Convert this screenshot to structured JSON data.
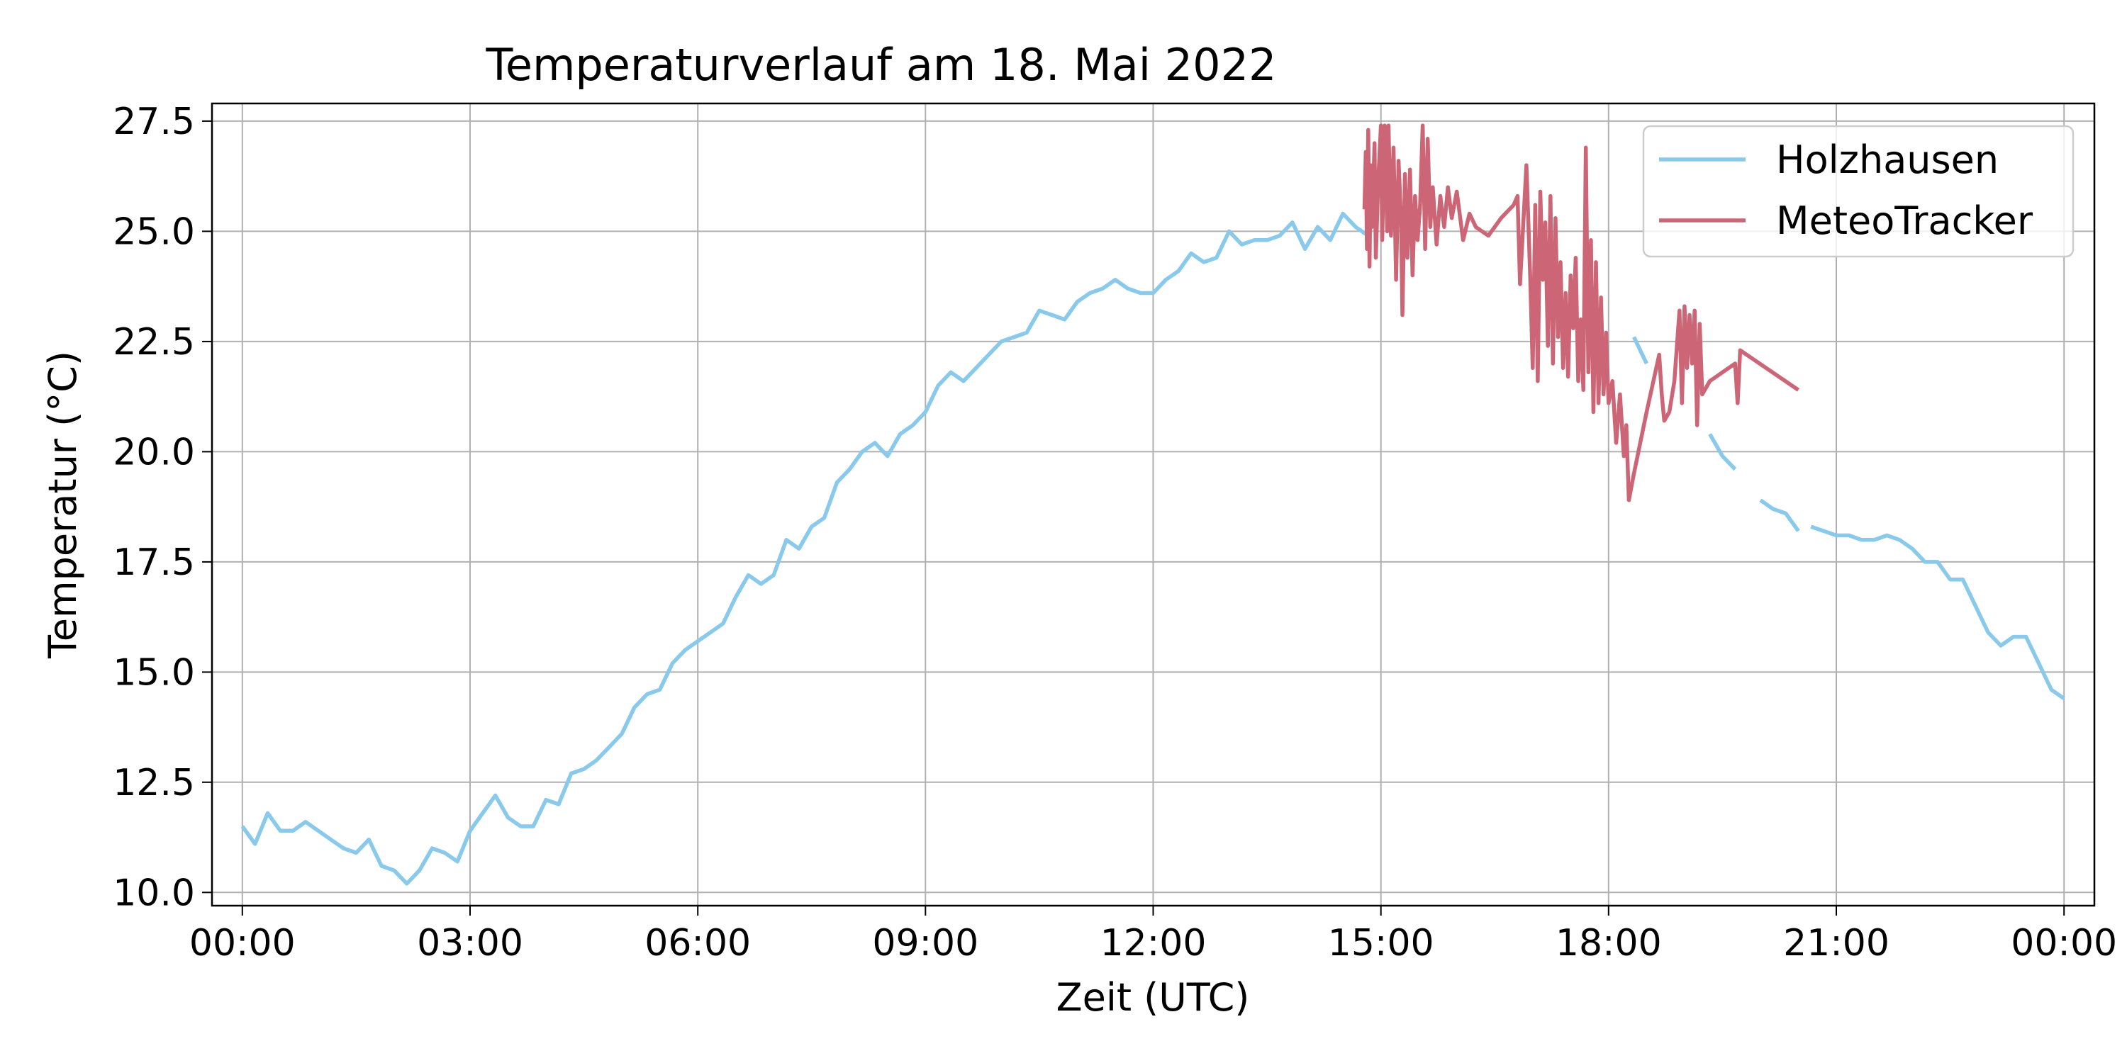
{
  "chart_data": {
    "type": "line",
    "title": "Temperaturverlauf am 18. Mai 2022",
    "xlabel": "Zeit (UTC)",
    "ylabel": "Temperatur (°C)",
    "xlim": [
      "2022-05-17T23:36",
      "2022-05-19T00:24"
    ],
    "ylim": [
      9.7,
      27.9
    ],
    "grid": true,
    "legend_position": "top-right",
    "x_ticks": [
      "2022-05-18T00:00",
      "2022-05-18T03:00",
      "2022-05-18T06:00",
      "2022-05-18T09:00",
      "2022-05-18T12:00",
      "2022-05-18T15:00",
      "2022-05-18T18:00",
      "2022-05-18T21:00",
      "2022-05-19T00:00"
    ],
    "x_tick_labels": [
      "00:00",
      "03:00",
      "06:00",
      "09:00",
      "12:00",
      "15:00",
      "18:00",
      "21:00",
      "00:00"
    ],
    "y_ticks": [
      10,
      12.5,
      15,
      17.5,
      20,
      22.5,
      25,
      27.5
    ],
    "y_tick_labels": [
      "10.0",
      "12.5",
      "15.0",
      "17.5",
      "20.0",
      "22.5",
      "25.0",
      "27.5"
    ],
    "series": [
      {
        "name": "Holzhausen",
        "color": "#88c9ec",
        "points": [
          [
            "2022-05-18T00:00",
            11.5
          ],
          [
            "2022-05-18T00:10",
            11.1
          ],
          [
            "2022-05-18T00:20",
            11.8
          ],
          [
            "2022-05-18T00:30",
            11.4
          ],
          [
            "2022-05-18T00:40",
            11.4
          ],
          [
            "2022-05-18T00:50",
            11.6
          ],
          [
            "2022-05-18T01:00",
            11.4
          ],
          [
            "2022-05-18T01:10",
            11.2
          ],
          [
            "2022-05-18T01:20",
            11.0
          ],
          [
            "2022-05-18T01:30",
            10.9
          ],
          [
            "2022-05-18T01:40",
            11.2
          ],
          [
            "2022-05-18T01:50",
            10.6
          ],
          [
            "2022-05-18T02:00",
            10.5
          ],
          [
            "2022-05-18T02:10",
            10.2
          ],
          [
            "2022-05-18T02:20",
            10.5
          ],
          [
            "2022-05-18T02:30",
            11.0
          ],
          [
            "2022-05-18T02:40",
            10.9
          ],
          [
            "2022-05-18T02:50",
            10.7
          ],
          [
            "2022-05-18T03:00",
            11.4
          ],
          [
            "2022-05-18T03:10",
            11.8
          ],
          [
            "2022-05-18T03:20",
            12.2
          ],
          [
            "2022-05-18T03:30",
            11.7
          ],
          [
            "2022-05-18T03:40",
            11.5
          ],
          [
            "2022-05-18T03:50",
            11.5
          ],
          [
            "2022-05-18T04:00",
            12.1
          ],
          [
            "2022-05-18T04:10",
            12.0
          ],
          [
            "2022-05-18T04:20",
            12.7
          ],
          [
            "2022-05-18T04:30",
            12.8
          ],
          [
            "2022-05-18T04:40",
            13.0
          ],
          [
            "2022-05-18T04:50",
            13.3
          ],
          [
            "2022-05-18T05:00",
            13.6
          ],
          [
            "2022-05-18T05:10",
            14.2
          ],
          [
            "2022-05-18T05:20",
            14.5
          ],
          [
            "2022-05-18T05:30",
            14.6
          ],
          [
            "2022-05-18T05:40",
            15.2
          ],
          [
            "2022-05-18T05:50",
            15.5
          ],
          [
            "2022-05-18T06:00",
            15.7
          ],
          [
            "2022-05-18T06:10",
            15.9
          ],
          [
            "2022-05-18T06:20",
            16.1
          ],
          [
            "2022-05-18T06:30",
            16.7
          ],
          [
            "2022-05-18T06:40",
            17.2
          ],
          [
            "2022-05-18T06:50",
            17.0
          ],
          [
            "2022-05-18T07:00",
            17.2
          ],
          [
            "2022-05-18T07:10",
            18.0
          ],
          [
            "2022-05-18T07:20",
            17.8
          ],
          [
            "2022-05-18T07:30",
            18.3
          ],
          [
            "2022-05-18T07:40",
            18.5
          ],
          [
            "2022-05-18T07:50",
            19.3
          ],
          [
            "2022-05-18T08:00",
            19.6
          ],
          [
            "2022-05-18T08:10",
            20.0
          ],
          [
            "2022-05-18T08:20",
            20.2
          ],
          [
            "2022-05-18T08:30",
            19.9
          ],
          [
            "2022-05-18T08:40",
            20.4
          ],
          [
            "2022-05-18T08:50",
            20.6
          ],
          [
            "2022-05-18T09:00",
            20.9
          ],
          [
            "2022-05-18T09:10",
            21.5
          ],
          [
            "2022-05-18T09:20",
            21.8
          ],
          [
            "2022-05-18T09:30",
            21.6
          ],
          [
            "2022-05-18T09:40",
            21.9
          ],
          [
            "2022-05-18T09:50",
            22.2
          ],
          [
            "2022-05-18T10:00",
            22.5
          ],
          [
            "2022-05-18T10:10",
            22.6
          ],
          [
            "2022-05-18T10:20",
            22.7
          ],
          [
            "2022-05-18T10:30",
            23.2
          ],
          [
            "2022-05-18T10:40",
            23.1
          ],
          [
            "2022-05-18T10:50",
            23.0
          ],
          [
            "2022-05-18T11:00",
            23.4
          ],
          [
            "2022-05-18T11:10",
            23.6
          ],
          [
            "2022-05-18T11:20",
            23.7
          ],
          [
            "2022-05-18T11:30",
            23.9
          ],
          [
            "2022-05-18T11:40",
            23.7
          ],
          [
            "2022-05-18T11:50",
            23.6
          ],
          [
            "2022-05-18T12:00",
            23.6
          ],
          [
            "2022-05-18T12:10",
            23.9
          ],
          [
            "2022-05-18T12:20",
            24.1
          ],
          [
            "2022-05-18T12:30",
            24.5
          ],
          [
            "2022-05-18T12:40",
            24.3
          ],
          [
            "2022-05-18T12:50",
            24.4
          ],
          [
            "2022-05-18T13:00",
            25.0
          ],
          [
            "2022-05-18T13:10",
            24.7
          ],
          [
            "2022-05-18T13:20",
            24.8
          ],
          [
            "2022-05-18T13:30",
            24.8
          ],
          [
            "2022-05-18T13:40",
            24.9
          ],
          [
            "2022-05-18T13:50",
            25.2
          ],
          [
            "2022-05-18T14:00",
            24.6
          ],
          [
            "2022-05-18T14:10",
            25.1
          ],
          [
            "2022-05-18T14:20",
            24.8
          ],
          [
            "2022-05-18T14:30",
            25.4
          ],
          [
            "2022-05-18T14:40",
            25.1
          ],
          [
            "2022-05-18T14:50",
            24.9
          ],
          null,
          [
            "2022-05-18T18:20",
            22.6
          ],
          [
            "2022-05-18T18:30",
            22.0
          ],
          null,
          [
            "2022-05-18T19:00",
            20.7
          ],
          null,
          [
            "2022-05-18T19:20",
            20.4
          ],
          [
            "2022-05-18T19:30",
            19.9
          ],
          [
            "2022-05-18T19:40",
            19.6
          ],
          null,
          [
            "2022-05-18T20:00",
            18.9
          ],
          [
            "2022-05-18T20:10",
            18.7
          ],
          [
            "2022-05-18T20:20",
            18.6
          ],
          [
            "2022-05-18T20:30",
            18.2
          ],
          null,
          [
            "2022-05-18T20:40",
            18.3
          ],
          [
            "2022-05-18T20:50",
            18.2
          ],
          [
            "2022-05-18T21:00",
            18.1
          ],
          [
            "2022-05-18T21:10",
            18.1
          ],
          [
            "2022-05-18T21:20",
            18.0
          ],
          [
            "2022-05-18T21:30",
            18.0
          ],
          [
            "2022-05-18T21:40",
            18.1
          ],
          [
            "2022-05-18T21:50",
            18.0
          ],
          [
            "2022-05-18T22:00",
            17.8
          ],
          [
            "2022-05-18T22:10",
            17.5
          ],
          [
            "2022-05-18T22:20",
            17.5
          ],
          [
            "2022-05-18T22:30",
            17.1
          ],
          [
            "2022-05-18T22:40",
            17.1
          ],
          [
            "2022-05-18T22:50",
            16.5
          ],
          [
            "2022-05-18T23:00",
            15.9
          ],
          [
            "2022-05-18T23:10",
            15.6
          ],
          [
            "2022-05-18T23:20",
            15.8
          ],
          [
            "2022-05-18T23:30",
            15.8
          ],
          [
            "2022-05-18T23:40",
            15.2
          ],
          [
            "2022-05-18T23:50",
            14.6
          ],
          [
            "2022-05-19T00:00",
            14.4
          ]
        ]
      },
      {
        "name": "MeteoTracker",
        "color": "#cc6677",
        "points": [
          [
            "2022-05-18T14:47",
            25.5
          ],
          [
            "2022-05-18T14:48",
            26.8
          ],
          [
            "2022-05-18T14:49",
            24.6
          ],
          [
            "2022-05-18T14:50",
            27.3
          ],
          [
            "2022-05-18T14:51",
            24.2
          ],
          [
            "2022-05-18T14:52",
            26.5
          ],
          [
            "2022-05-18T14:53",
            25.1
          ],
          [
            "2022-05-18T14:55",
            27.0
          ],
          [
            "2022-05-18T14:56",
            24.4
          ],
          [
            "2022-05-18T14:58",
            26.2
          ],
          [
            "2022-05-18T15:00",
            27.4
          ],
          [
            "2022-05-18T15:01",
            24.8
          ],
          [
            "2022-05-18T15:03",
            27.4
          ],
          [
            "2022-05-18T15:05",
            25.0
          ],
          [
            "2022-05-18T15:06",
            27.4
          ],
          [
            "2022-05-18T15:08",
            24.9
          ],
          [
            "2022-05-18T15:10",
            26.9
          ],
          [
            "2022-05-18T15:12",
            23.9
          ],
          [
            "2022-05-18T15:14",
            26.6
          ],
          [
            "2022-05-18T15:16",
            25.2
          ],
          [
            "2022-05-18T15:17",
            23.1
          ],
          [
            "2022-05-18T15:19",
            26.3
          ],
          [
            "2022-05-18T15:21",
            24.4
          ],
          [
            "2022-05-18T15:23",
            26.4
          ],
          [
            "2022-05-18T15:25",
            24.0
          ],
          [
            "2022-05-18T15:27",
            25.8
          ],
          [
            "2022-05-18T15:29",
            24.8
          ],
          [
            "2022-05-18T15:31",
            25.6
          ],
          [
            "2022-05-18T15:33",
            27.4
          ],
          [
            "2022-05-18T15:35",
            24.6
          ],
          [
            "2022-05-18T15:37",
            27.1
          ],
          [
            "2022-05-18T15:39",
            25.1
          ],
          [
            "2022-05-18T15:41",
            26.0
          ],
          [
            "2022-05-18T15:44",
            24.7
          ],
          [
            "2022-05-18T15:47",
            25.8
          ],
          [
            "2022-05-18T15:50",
            25.1
          ],
          [
            "2022-05-18T15:53",
            26.0
          ],
          [
            "2022-05-18T15:56",
            25.3
          ],
          [
            "2022-05-18T16:00",
            25.9
          ],
          [
            "2022-05-18T16:05",
            24.8
          ],
          [
            "2022-05-18T16:10",
            25.4
          ],
          [
            "2022-05-18T16:15",
            25.1
          ],
          [
            "2022-05-18T16:25",
            24.9
          ],
          [
            "2022-05-18T16:35",
            25.3
          ],
          [
            "2022-05-18T16:45",
            25.6
          ],
          [
            "2022-05-18T16:48",
            25.8
          ],
          [
            "2022-05-18T16:50",
            23.8
          ],
          [
            "2022-05-18T16:55",
            26.5
          ],
          [
            "2022-05-18T16:58",
            24.0
          ],
          [
            "2022-05-18T17:00",
            21.9
          ],
          [
            "2022-05-18T17:02",
            25.6
          ],
          [
            "2022-05-18T17:04",
            21.6
          ],
          [
            "2022-05-18T17:06",
            25.9
          ],
          [
            "2022-05-18T17:08",
            23.9
          ],
          [
            "2022-05-18T17:10",
            25.2
          ],
          [
            "2022-05-18T17:12",
            22.4
          ],
          [
            "2022-05-18T17:14",
            25.8
          ],
          [
            "2022-05-18T17:16",
            22.0
          ],
          [
            "2022-05-18T17:18",
            25.3
          ],
          [
            "2022-05-18T17:20",
            22.6
          ],
          [
            "2022-05-18T17:22",
            24.3
          ],
          [
            "2022-05-18T17:24",
            21.9
          ],
          [
            "2022-05-18T17:26",
            23.6
          ],
          [
            "2022-05-18T17:28",
            21.7
          ],
          [
            "2022-05-18T17:30",
            24.0
          ],
          [
            "2022-05-18T17:32",
            22.8
          ],
          [
            "2022-05-18T17:34",
            24.4
          ],
          [
            "2022-05-18T17:36",
            21.6
          ],
          [
            "2022-05-18T17:38",
            23.0
          ],
          [
            "2022-05-18T17:40",
            21.4
          ],
          [
            "2022-05-18T17:42",
            26.9
          ],
          [
            "2022-05-18T17:44",
            21.8
          ],
          [
            "2022-05-18T17:46",
            24.8
          ],
          [
            "2022-05-18T17:48",
            20.9
          ],
          [
            "2022-05-18T17:50",
            24.3
          ],
          [
            "2022-05-18T17:52",
            21.1
          ],
          [
            "2022-05-18T17:54",
            23.5
          ],
          [
            "2022-05-18T17:56",
            21.3
          ],
          [
            "2022-05-18T17:58",
            22.7
          ],
          [
            "2022-05-18T18:00",
            21.1
          ],
          [
            "2022-05-18T18:03",
            21.6
          ],
          [
            "2022-05-18T18:06",
            20.2
          ],
          [
            "2022-05-18T18:09",
            21.3
          ],
          [
            "2022-05-18T18:12",
            19.9
          ],
          [
            "2022-05-18T18:14",
            20.6
          ],
          [
            "2022-05-18T18:16",
            18.9
          ],
          [
            "2022-05-18T18:20",
            19.5
          ],
          [
            "2022-05-18T18:30",
            20.9
          ],
          [
            "2022-05-18T18:40",
            22.2
          ],
          [
            "2022-05-18T18:42",
            21.3
          ],
          [
            "2022-05-18T18:44",
            20.7
          ],
          [
            "2022-05-18T18:48",
            20.9
          ],
          [
            "2022-05-18T18:52",
            21.6
          ],
          [
            "2022-05-18T18:56",
            23.2
          ],
          [
            "2022-05-18T18:58",
            21.1
          ],
          [
            "2022-05-18T19:00",
            23.3
          ],
          [
            "2022-05-18T19:02",
            21.9
          ],
          [
            "2022-05-18T19:04",
            23.1
          ],
          [
            "2022-05-18T19:06",
            22.0
          ],
          [
            "2022-05-18T19:08",
            23.2
          ],
          [
            "2022-05-18T19:10",
            20.6
          ],
          [
            "2022-05-18T19:12",
            22.9
          ],
          [
            "2022-05-18T19:14",
            21.3
          ],
          [
            "2022-05-18T19:20",
            21.6
          ],
          [
            "2022-05-18T19:30",
            21.8
          ],
          [
            "2022-05-18T19:40",
            22.0
          ],
          [
            "2022-05-18T19:42",
            21.1
          ],
          [
            "2022-05-18T19:44",
            22.3
          ],
          [
            "2022-05-18T20:30",
            21.4
          ]
        ]
      }
    ]
  }
}
